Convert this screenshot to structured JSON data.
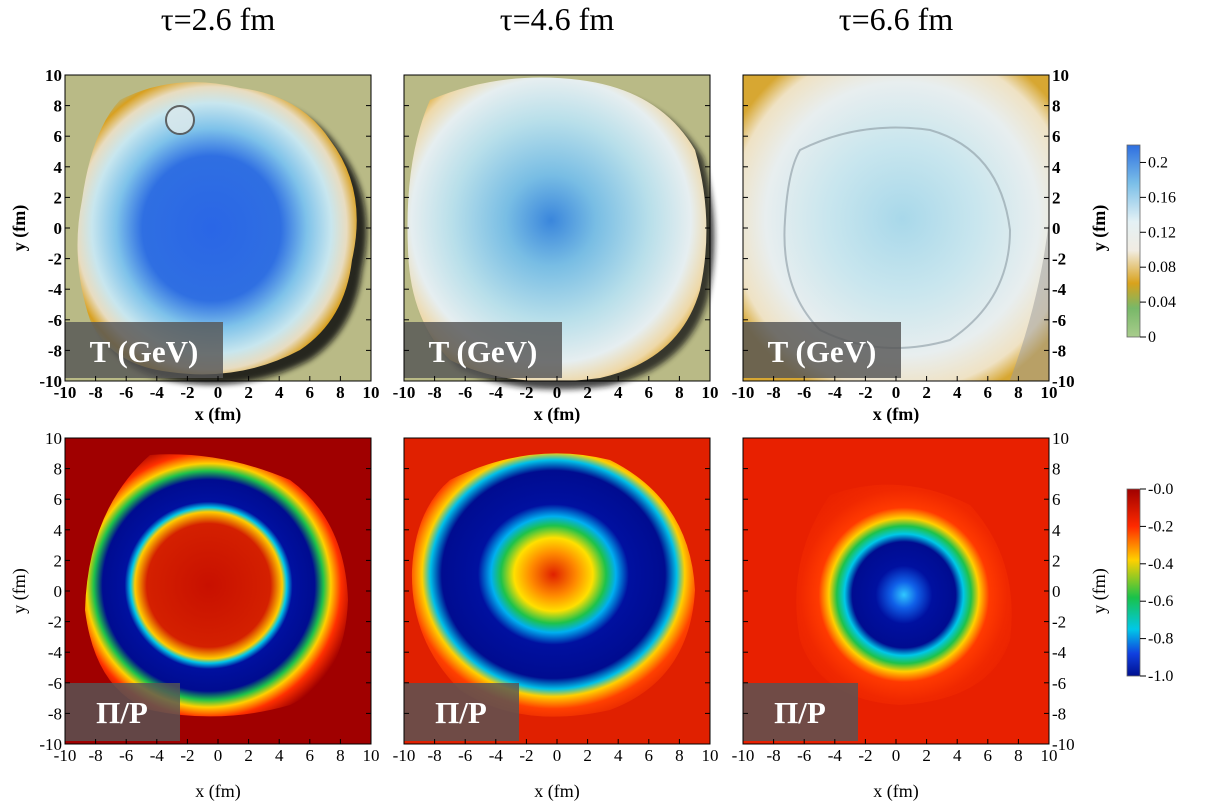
{
  "chart_data": {
    "type": "heatmap",
    "columns": [
      {
        "title": "τ=2.6 fm"
      },
      {
        "title": "τ=4.6 fm"
      },
      {
        "title": "τ=6.6 fm"
      }
    ],
    "rows": [
      {
        "quantity": "temperature",
        "panel_label": "T (GeV)",
        "colorbar": {
          "ticks": [
            "0.2",
            "0.16",
            "0.12",
            "0.08",
            "0.04",
            "0"
          ],
          "range": [
            0,
            0.22
          ],
          "colors": [
            "#2e6fe0",
            "#a9dcee",
            "#f1ece2",
            "#d9a21c",
            "#78b868",
            "#a8cc8c"
          ]
        }
      },
      {
        "quantity": "bulk pressure ratio",
        "panel_label": "Π/P",
        "colorbar": {
          "ticks": [
            "-0.0",
            "-0.2",
            "-0.4",
            "-0.6",
            "-0.8",
            "-1.0"
          ],
          "range": [
            -1.0,
            0.0
          ],
          "colors": [
            "#a00000",
            "#ff2a00",
            "#ffd000",
            "#19c24a",
            "#00c8e8",
            "#001090"
          ]
        }
      }
    ],
    "xlabel": "x (fm)",
    "ylabel": "y (fm)",
    "xlim": [
      -10,
      10
    ],
    "ylim": [
      -10,
      10
    ],
    "x_ticks": [
      "-10",
      "-8",
      "-6",
      "-4",
      "-2",
      "0",
      "2",
      "4",
      "6",
      "8",
      "10"
    ],
    "y_ticks": [
      "10",
      "8",
      "6",
      "4",
      "2",
      "0",
      "-2",
      "-4",
      "-6",
      "-8",
      "-10"
    ]
  }
}
